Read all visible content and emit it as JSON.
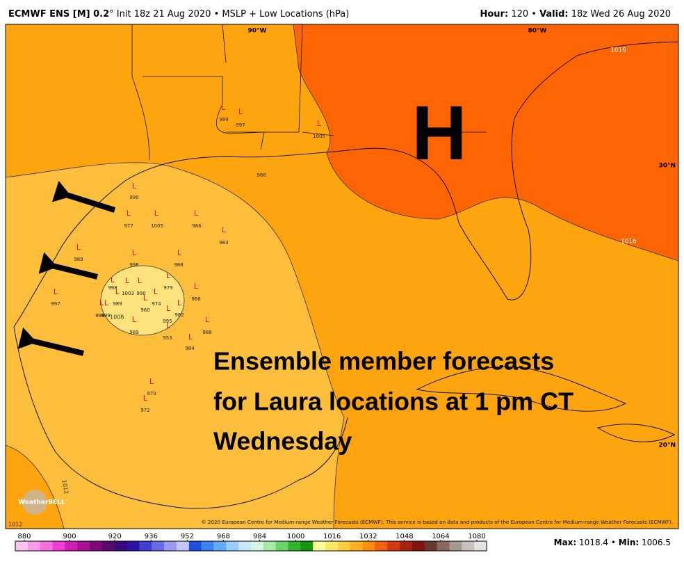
{
  "header": {
    "left_bold": "ECMWF ENS [M] 0.2",
    "left_rest": "° Init 18z 21 Aug 2020 • MSLP + Low Locations (hPa)",
    "hour_label": "Hour:",
    "hour": "120 •",
    "valid_label": "Valid:",
    "valid": "18z Wed 26 Aug 2020"
  },
  "map": {
    "lon_labels": [
      "90°W",
      "80°W"
    ],
    "lat_labels": [
      "30°N",
      "20°N"
    ],
    "contour_labels": [
      "1016",
      "1016",
      "1008",
      "1012",
      "1012"
    ],
    "high_label": "H",
    "low_symbol": "L",
    "lows": [
      999,
      997,
      1005,
      990,
      977,
      1005,
      986,
      983,
      989,
      998,
      988,
      998,
      1003,
      990,
      979,
      966,
      974,
      960,
      989,
      999,
      999,
      997,
      982,
      995,
      989,
      953,
      988,
      984,
      970,
      972
    ],
    "extra_pressure": "988",
    "annotation": [
      "Ensemble member forecasts",
      "for Laura locations at 1 pm CT",
      "Wednesday"
    ],
    "copyright": "© 2020 European Centre for Medium-range Weather Forecasts (ECMWF). This service is based on data and products of the European Centre for Medium-range Weather Forecasts (ECMWF).",
    "logo": "WeatherBELL"
  },
  "colorbar": {
    "ticks": [
      880,
      900,
      920,
      936,
      952,
      968,
      984,
      1000,
      1016,
      1032,
      1048,
      1064,
      1080
    ]
  },
  "footer": {
    "max_label": "Max:",
    "max": "1018.4 •",
    "min_label": "Min:",
    "min": "1006.5"
  }
}
